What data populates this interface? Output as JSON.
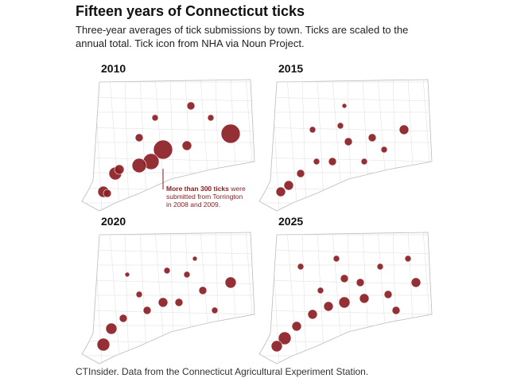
{
  "header": {
    "title": "Fifteen years of Connecticut ticks",
    "subtitle": [
      "Three-year averages of tick submissions by town. Ticks are scaled to the",
      "annual total. Tick icon from NHA via Noun Project."
    ]
  },
  "panels": [
    {
      "year": "2010"
    },
    {
      "year": "2015"
    },
    {
      "year": "2020"
    },
    {
      "year": "2025"
    }
  ],
  "annotation": {
    "bold": "More than 300 ticks",
    "lines": [
      "were",
      "submitted from Torrington",
      "in 2008 and 2009."
    ]
  },
  "footer": "CTInsider. Data from the Connecticut Agricultural Experiment Station."
}
